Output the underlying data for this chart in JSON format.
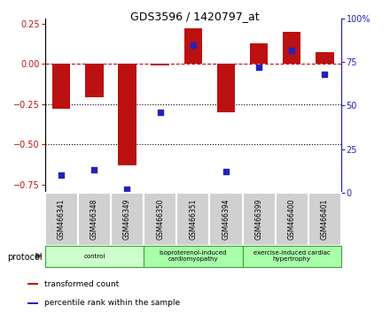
{
  "title": "GDS3596 / 1420797_at",
  "samples": [
    "GSM466341",
    "GSM466348",
    "GSM466349",
    "GSM466350",
    "GSM466351",
    "GSM466394",
    "GSM466399",
    "GSM466400",
    "GSM466401"
  ],
  "transformed_count": [
    -0.28,
    -0.21,
    -0.63,
    -0.01,
    0.22,
    -0.3,
    0.13,
    0.2,
    0.07
  ],
  "percentile_rank": [
    10,
    13,
    2,
    46,
    85,
    12,
    72,
    82,
    68
  ],
  "bar_color": "#bb1111",
  "dot_color": "#2222bb",
  "left_ylim": [
    -0.8,
    0.28
  ],
  "right_ylim": [
    0,
    100
  ],
  "left_yticks": [
    -0.75,
    -0.5,
    -0.25,
    0,
    0.25
  ],
  "right_yticks": [
    0,
    25,
    50,
    75,
    100
  ],
  "dotted_lines": [
    -0.25,
    -0.5
  ],
  "groups": [
    {
      "label": "control",
      "start": 0,
      "end": 3,
      "color": "#ccffcc"
    },
    {
      "label": "isoproterenol-induced\ncardiomyopathy",
      "start": 3,
      "end": 6,
      "color": "#aaffaa"
    },
    {
      "label": "exercise-induced cardiac\nhypertrophy",
      "start": 6,
      "end": 9,
      "color": "#aaffaa"
    }
  ],
  "protocol_label": "protocol",
  "legend_items": [
    {
      "label": "transformed count",
      "color": "#bb1111"
    },
    {
      "label": "percentile rank within the sample",
      "color": "#2222bb"
    }
  ],
  "bar_width": 0.55,
  "dot_size": 25
}
